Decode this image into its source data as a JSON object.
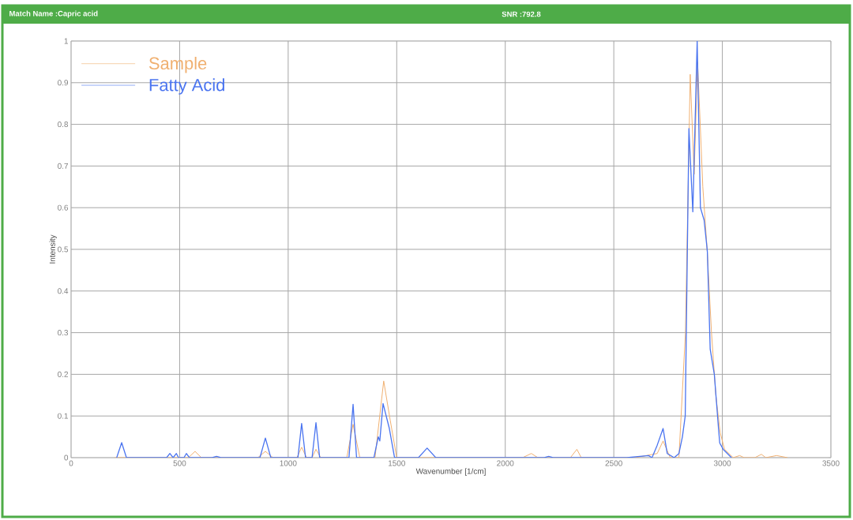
{
  "chart_data": {
    "type": "line",
    "title": "Match Name :Capric acid",
    "subtitle": "SNR :792.8",
    "xlabel": "Wavenumber [1/cm]",
    "ylabel": "Intensity",
    "xlim": [
      0,
      3500
    ],
    "xticks": [
      0,
      500,
      1000,
      1500,
      2000,
      2500,
      3000,
      3500
    ],
    "ylim": [
      0,
      1
    ],
    "yticks": [
      0,
      0.1,
      0.2,
      0.3,
      0.4,
      0.5,
      0.6,
      0.7,
      0.8,
      0.9,
      1
    ],
    "grid": true,
    "legend": "top left",
    "marker": "none",
    "line_style": "solid",
    "series": [
      {
        "name": "Sample",
        "color": "#f0b070",
        "x": [
          200,
          540,
          571,
          600,
          860,
          895,
          930,
          1040,
          1062,
          1085,
          1110,
          1128,
          1150,
          1270,
          1299,
          1330,
          1400,
          1440,
          1470,
          1500,
          1620,
          2080,
          2120,
          2150,
          2300,
          2330,
          2350,
          2600,
          2700,
          2727,
          2760,
          2800,
          2830,
          2852,
          2870,
          2886,
          2910,
          2930,
          2950,
          2970,
          2990,
          3010,
          3050,
          3080,
          3100,
          3150,
          3180,
          3200,
          3250,
          3300
        ],
        "values": [
          0,
          0,
          0.015,
          0,
          0,
          0.015,
          0,
          0,
          0.025,
          0,
          0,
          0.02,
          0,
          0,
          0.08,
          0,
          0,
          0.184,
          0.09,
          0,
          0,
          0,
          0.01,
          0,
          0,
          0.02,
          0,
          0,
          0.01,
          0.04,
          0,
          0,
          0.3,
          0.92,
          0.68,
          0.95,
          0.65,
          0.5,
          0.3,
          0.15,
          0.06,
          0.02,
          0,
          0.005,
          0,
          0,
          0.008,
          0,
          0.005,
          0
        ]
      },
      {
        "name": "Fatty Acid",
        "color": "#4a74f0",
        "x": [
          210,
          233,
          255,
          440,
          455,
          470,
          485,
          495,
          510,
          520,
          531,
          545,
          650,
          670,
          690,
          870,
          895,
          920,
          1045,
          1062,
          1080,
          1110,
          1128,
          1145,
          1280,
          1299,
          1315,
          1395,
          1415,
          1422,
          1437,
          1466,
          1490,
          1600,
          1640,
          1680,
          2180,
          2200,
          2220,
          2560,
          2660,
          2676,
          2700,
          2727,
          2746,
          2778,
          2800,
          2816,
          2829,
          2846,
          2864,
          2884,
          2899,
          2916,
          2928,
          2931,
          2944,
          2963,
          2982,
          2988,
          3004,
          3042
        ],
        "values": [
          0,
          0.036,
          0,
          0,
          0.01,
          0,
          0.01,
          0,
          0,
          0,
          0.01,
          0,
          0,
          0.003,
          0,
          0,
          0.047,
          0,
          0,
          0.082,
          0,
          0,
          0.084,
          0,
          0,
          0.128,
          0,
          0,
          0.05,
          0.04,
          0.13,
          0.07,
          0,
          0,
          0.023,
          0,
          0,
          0.003,
          0,
          0,
          0.005,
          0,
          0.03,
          0.07,
          0.01,
          0,
          0.01,
          0.05,
          0.1,
          0.79,
          0.59,
          1,
          0.6,
          0.57,
          0.51,
          0.494,
          0.26,
          0.2,
          0.072,
          0.035,
          0.02,
          0
        ]
      }
    ]
  }
}
